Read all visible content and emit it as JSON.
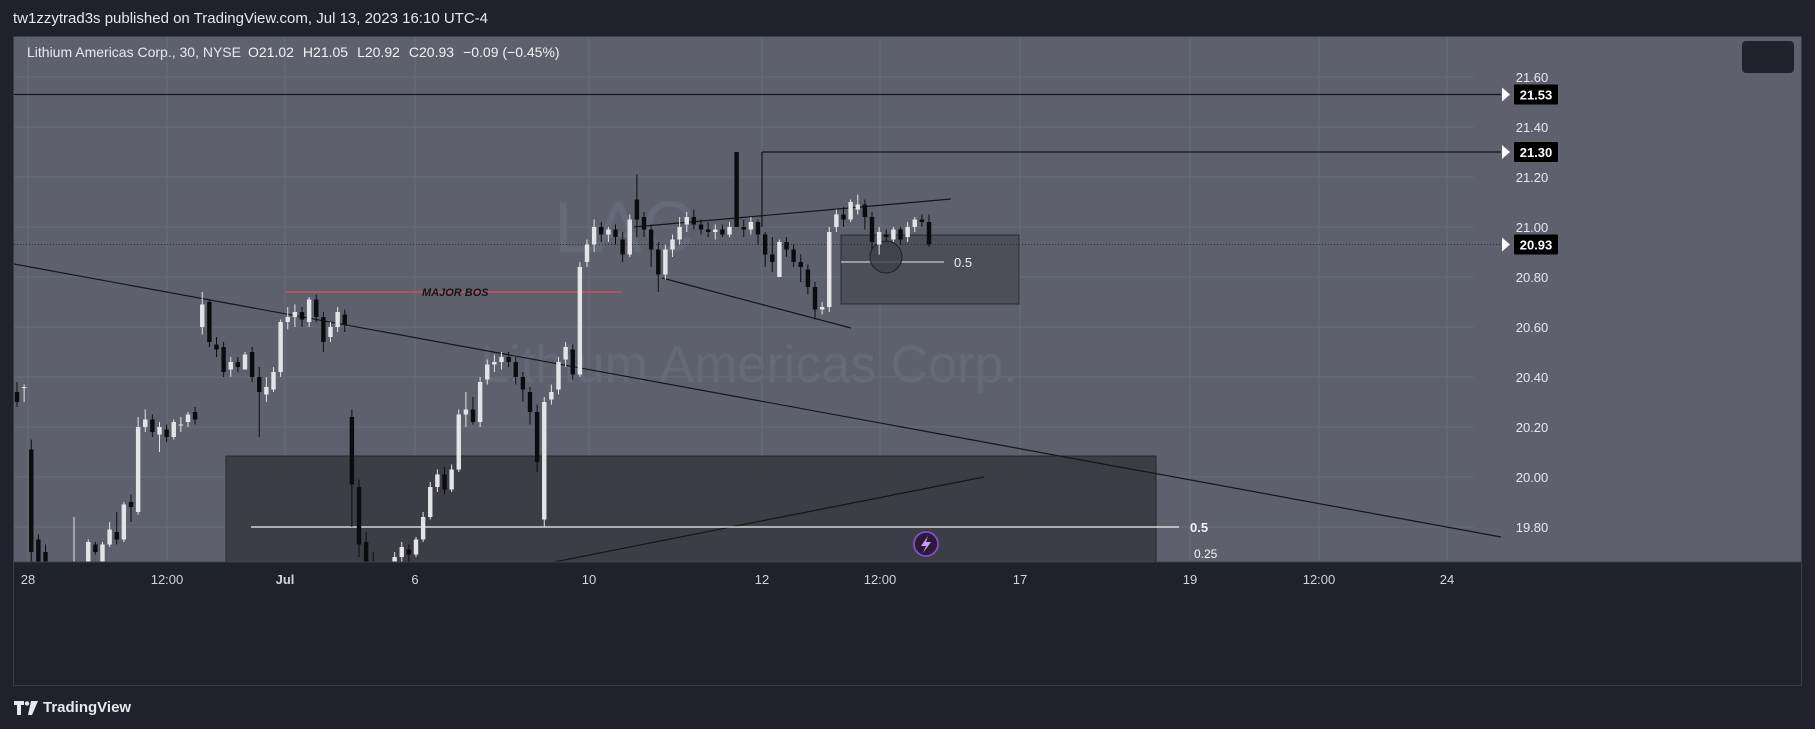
{
  "header": {
    "publish_line": "tw1zzytrad3s published on TradingView.com, Jul 13, 2023 16:10 UTC-4"
  },
  "legend": {
    "symbol": "Lithium Americas Corp., 30, NYSE",
    "open": "O21.02",
    "high": "H21.05",
    "low": "L20.92",
    "close": "C20.93",
    "change": "−0.09 (−0.45%)"
  },
  "watermark": {
    "ticker": "LAC",
    "name": "Lithium Americas Corp."
  },
  "footer": {
    "brand": "TradingView"
  },
  "colors": {
    "background": "#5e606e",
    "up_candle": "#e4e4e8",
    "down_candle": "#0c0c10",
    "bos_line": "#ff4d4d",
    "zone_fill": "#3a3b42",
    "price_tag_bg": "#000000"
  },
  "chart_data": {
    "type": "candlestick",
    "symbol": "LAC",
    "timeframe": "30",
    "exchange": "NYSE",
    "ylim": [
      19.66,
      21.76
    ],
    "yticks": [
      "21.60",
      "21.40",
      "21.20",
      "21.00",
      "20.80",
      "20.60",
      "20.40",
      "20.20",
      "20.00",
      "19.80"
    ],
    "xticks": [
      "28",
      "12:00",
      "Jul",
      "6",
      "10",
      "12",
      "12:00",
      "17",
      "19",
      "12:00",
      "24"
    ],
    "price_labels": [
      {
        "value": "21.53"
      },
      {
        "value": "21.30"
      },
      {
        "value": "20.93"
      }
    ],
    "annotations": {
      "bos_label": "MAJOR BOS",
      "fib_small": "0.5",
      "fib_large": "0.5",
      "fib_cut": "0.25"
    },
    "candles": [
      {
        "o": 20.34,
        "h": 20.38,
        "l": 20.28,
        "c": 20.3
      },
      {
        "o": 20.36,
        "h": 20.37,
        "l": 20.3,
        "c": 20.36
      },
      {
        "o": 20.11,
        "h": 20.15,
        "l": 19.6,
        "c": 19.7
      },
      {
        "o": 19.75,
        "h": 19.77,
        "l": 19.56,
        "c": 19.61
      },
      {
        "o": 19.7,
        "h": 19.73,
        "l": 19.6,
        "c": 19.66
      },
      {
        "o": 19.6,
        "h": 19.65,
        "l": 19.5,
        "c": 19.58
      },
      {
        "o": 19.58,
        "h": 19.62,
        "l": 19.55,
        "c": 19.6
      },
      {
        "o": 19.6,
        "h": 19.66,
        "l": 19.58,
        "c": 19.62
      },
      {
        "o": 19.63,
        "h": 19.84,
        "l": 19.6,
        "c": 19.66
      },
      {
        "o": 19.62,
        "h": 19.65,
        "l": 19.6,
        "c": 19.64
      },
      {
        "o": 19.65,
        "h": 19.75,
        "l": 19.63,
        "c": 19.74
      },
      {
        "o": 19.73,
        "h": 19.74,
        "l": 19.69,
        "c": 19.7
      },
      {
        "o": 19.66,
        "h": 19.74,
        "l": 19.66,
        "c": 19.73
      },
      {
        "o": 19.73,
        "h": 19.82,
        "l": 19.72,
        "c": 19.79
      },
      {
        "o": 19.78,
        "h": 19.86,
        "l": 19.73,
        "c": 19.75
      },
      {
        "o": 19.75,
        "h": 19.9,
        "l": 19.74,
        "c": 19.89
      },
      {
        "o": 19.9,
        "h": 19.93,
        "l": 19.82,
        "c": 19.88
      },
      {
        "o": 19.86,
        "h": 20.24,
        "l": 19.85,
        "c": 20.2
      },
      {
        "o": 20.2,
        "h": 20.27,
        "l": 20.18,
        "c": 20.23
      },
      {
        "o": 20.23,
        "h": 20.25,
        "l": 20.16,
        "c": 20.18
      },
      {
        "o": 20.17,
        "h": 20.22,
        "l": 20.1,
        "c": 20.2
      },
      {
        "o": 20.19,
        "h": 20.21,
        "l": 20.14,
        "c": 20.16
      },
      {
        "o": 20.16,
        "h": 20.23,
        "l": 20.15,
        "c": 20.22
      },
      {
        "o": 20.21,
        "h": 20.24,
        "l": 20.18,
        "c": 20.21
      },
      {
        "o": 20.22,
        "h": 20.26,
        "l": 20.2,
        "c": 20.25
      },
      {
        "o": 20.26,
        "h": 20.28,
        "l": 20.21,
        "c": 20.23
      },
      {
        "o": 20.6,
        "h": 20.74,
        "l": 20.57,
        "c": 20.69
      },
      {
        "o": 20.7,
        "h": 20.71,
        "l": 20.52,
        "c": 20.54
      },
      {
        "o": 20.53,
        "h": 20.56,
        "l": 20.48,
        "c": 20.51
      },
      {
        "o": 20.52,
        "h": 20.54,
        "l": 20.4,
        "c": 20.42
      },
      {
        "o": 20.43,
        "h": 20.48,
        "l": 20.4,
        "c": 20.46
      },
      {
        "o": 20.46,
        "h": 20.48,
        "l": 20.42,
        "c": 20.44
      },
      {
        "o": 20.43,
        "h": 20.5,
        "l": 20.43,
        "c": 20.49
      },
      {
        "o": 20.5,
        "h": 20.52,
        "l": 20.38,
        "c": 20.4
      },
      {
        "o": 20.4,
        "h": 20.44,
        "l": 20.16,
        "c": 20.34
      },
      {
        "o": 20.33,
        "h": 20.4,
        "l": 20.3,
        "c": 20.36
      },
      {
        "o": 20.35,
        "h": 20.44,
        "l": 20.34,
        "c": 20.42
      },
      {
        "o": 20.42,
        "h": 20.63,
        "l": 20.4,
        "c": 20.62
      },
      {
        "o": 20.62,
        "h": 20.68,
        "l": 20.59,
        "c": 20.64
      },
      {
        "o": 20.64,
        "h": 20.69,
        "l": 20.6,
        "c": 20.66
      },
      {
        "o": 20.66,
        "h": 20.68,
        "l": 20.6,
        "c": 20.63
      },
      {
        "o": 20.62,
        "h": 20.72,
        "l": 20.6,
        "c": 20.71
      },
      {
        "o": 20.71,
        "h": 20.73,
        "l": 20.62,
        "c": 20.64
      },
      {
        "o": 20.64,
        "h": 20.66,
        "l": 20.5,
        "c": 20.54
      },
      {
        "o": 20.56,
        "h": 20.62,
        "l": 20.54,
        "c": 20.6
      },
      {
        "o": 20.6,
        "h": 20.68,
        "l": 20.58,
        "c": 20.66
      },
      {
        "o": 20.65,
        "h": 20.67,
        "l": 20.58,
        "c": 20.61
      },
      {
        "o": 20.24,
        "h": 20.27,
        "l": 19.8,
        "c": 19.97
      },
      {
        "o": 19.96,
        "h": 19.99,
        "l": 19.68,
        "c": 19.73
      },
      {
        "o": 19.74,
        "h": 19.78,
        "l": 19.61,
        "c": 19.65
      },
      {
        "o": 19.65,
        "h": 19.7,
        "l": 19.56,
        "c": 19.62
      },
      {
        "o": 19.62,
        "h": 19.64,
        "l": 19.5,
        "c": 19.57
      },
      {
        "o": 19.57,
        "h": 19.62,
        "l": 19.5,
        "c": 19.6
      },
      {
        "o": 19.6,
        "h": 19.7,
        "l": 19.59,
        "c": 19.68
      },
      {
        "o": 19.68,
        "h": 19.74,
        "l": 19.65,
        "c": 19.72
      },
      {
        "o": 19.71,
        "h": 19.73,
        "l": 19.66,
        "c": 19.69
      },
      {
        "o": 19.69,
        "h": 19.76,
        "l": 19.68,
        "c": 19.75
      },
      {
        "o": 19.75,
        "h": 19.86,
        "l": 19.74,
        "c": 19.84
      },
      {
        "o": 19.84,
        "h": 19.98,
        "l": 19.83,
        "c": 19.96
      },
      {
        "o": 19.96,
        "h": 20.03,
        "l": 19.94,
        "c": 20.01
      },
      {
        "o": 20.01,
        "h": 20.04,
        "l": 19.93,
        "c": 19.95
      },
      {
        "o": 19.95,
        "h": 20.05,
        "l": 19.94,
        "c": 20.03
      },
      {
        "o": 20.03,
        "h": 20.27,
        "l": 20.02,
        "c": 20.25
      },
      {
        "o": 20.25,
        "h": 20.34,
        "l": 20.2,
        "c": 20.27
      },
      {
        "o": 20.27,
        "h": 20.32,
        "l": 20.21,
        "c": 20.22
      },
      {
        "o": 20.22,
        "h": 20.4,
        "l": 20.2,
        "c": 20.38
      },
      {
        "o": 20.39,
        "h": 20.47,
        "l": 20.37,
        "c": 20.45
      },
      {
        "o": 20.45,
        "h": 20.49,
        "l": 20.42,
        "c": 20.46
      },
      {
        "o": 20.46,
        "h": 20.5,
        "l": 20.43,
        "c": 20.48
      },
      {
        "o": 20.48,
        "h": 20.5,
        "l": 20.44,
        "c": 20.46
      },
      {
        "o": 20.46,
        "h": 20.48,
        "l": 20.37,
        "c": 20.4
      },
      {
        "o": 20.4,
        "h": 20.42,
        "l": 20.3,
        "c": 20.35
      },
      {
        "o": 20.34,
        "h": 20.36,
        "l": 20.21,
        "c": 20.26
      },
      {
        "o": 20.26,
        "h": 20.29,
        "l": 20.02,
        "c": 20.06
      },
      {
        "o": 19.83,
        "h": 20.32,
        "l": 19.8,
        "c": 20.3
      },
      {
        "o": 20.31,
        "h": 20.37,
        "l": 20.29,
        "c": 20.34
      },
      {
        "o": 20.35,
        "h": 20.48,
        "l": 20.33,
        "c": 20.46
      },
      {
        "o": 20.47,
        "h": 20.54,
        "l": 20.44,
        "c": 20.52
      },
      {
        "o": 20.51,
        "h": 20.53,
        "l": 20.39,
        "c": 20.41
      },
      {
        "o": 20.41,
        "h": 20.86,
        "l": 20.4,
        "c": 20.84
      },
      {
        "o": 20.86,
        "h": 20.95,
        "l": 20.84,
        "c": 20.93
      },
      {
        "o": 20.93,
        "h": 21.03,
        "l": 20.9,
        "c": 21.0
      },
      {
        "o": 21.0,
        "h": 21.02,
        "l": 20.94,
        "c": 20.97
      },
      {
        "o": 20.97,
        "h": 21.0,
        "l": 20.94,
        "c": 20.99
      },
      {
        "o": 20.99,
        "h": 21.01,
        "l": 20.93,
        "c": 20.96
      },
      {
        "o": 20.95,
        "h": 20.98,
        "l": 20.86,
        "c": 20.89
      },
      {
        "o": 20.89,
        "h": 21.05,
        "l": 20.88,
        "c": 21.03
      },
      {
        "o": 21.11,
        "h": 21.21,
        "l": 20.96,
        "c": 21.03
      },
      {
        "o": 21.04,
        "h": 21.06,
        "l": 20.96,
        "c": 20.99
      },
      {
        "o": 20.99,
        "h": 21.01,
        "l": 20.84,
        "c": 20.91
      },
      {
        "o": 20.91,
        "h": 20.94,
        "l": 20.74,
        "c": 20.81
      },
      {
        "o": 20.81,
        "h": 20.93,
        "l": 20.79,
        "c": 20.91
      },
      {
        "o": 20.91,
        "h": 20.97,
        "l": 20.88,
        "c": 20.95
      },
      {
        "o": 20.95,
        "h": 21.04,
        "l": 20.93,
        "c": 21.0
      },
      {
        "o": 21.01,
        "h": 21.06,
        "l": 20.98,
        "c": 21.04
      },
      {
        "o": 21.04,
        "h": 21.07,
        "l": 20.99,
        "c": 21.01
      },
      {
        "o": 21.01,
        "h": 21.03,
        "l": 20.97,
        "c": 20.99
      },
      {
        "o": 20.99,
        "h": 21.02,
        "l": 20.96,
        "c": 20.98
      },
      {
        "o": 20.98,
        "h": 21.01,
        "l": 20.95,
        "c": 20.99
      },
      {
        "o": 20.99,
        "h": 21.01,
        "l": 20.96,
        "c": 20.97
      },
      {
        "o": 20.97,
        "h": 21.02,
        "l": 20.96,
        "c": 21.0
      },
      {
        "o": 21.3,
        "h": 21.3,
        "l": 21.0,
        "c": 21.0
      },
      {
        "o": 21.0,
        "h": 21.03,
        "l": 20.96,
        "c": 20.99
      },
      {
        "o": 20.99,
        "h": 21.04,
        "l": 20.97,
        "c": 21.02
      },
      {
        "o": 21.02,
        "h": 21.03,
        "l": 20.93,
        "c": 20.97
      },
      {
        "o": 20.97,
        "h": 20.98,
        "l": 20.84,
        "c": 20.89
      },
      {
        "o": 20.89,
        "h": 20.96,
        "l": 20.82,
        "c": 20.86
      },
      {
        "o": 20.8,
        "h": 20.95,
        "l": 20.8,
        "c": 20.94
      },
      {
        "o": 20.94,
        "h": 20.96,
        "l": 20.88,
        "c": 20.91
      },
      {
        "o": 20.91,
        "h": 20.93,
        "l": 20.84,
        "c": 20.86
      },
      {
        "o": 20.86,
        "h": 20.89,
        "l": 20.78,
        "c": 20.84
      },
      {
        "o": 20.83,
        "h": 20.85,
        "l": 20.73,
        "c": 20.76
      },
      {
        "o": 20.76,
        "h": 20.78,
        "l": 20.63,
        "c": 20.67
      },
      {
        "o": 20.67,
        "h": 20.7,
        "l": 20.65,
        "c": 20.68
      },
      {
        "o": 20.68,
        "h": 21.0,
        "l": 20.66,
        "c": 20.98
      },
      {
        "o": 21.0,
        "h": 21.07,
        "l": 20.98,
        "c": 21.05
      },
      {
        "o": 21.05,
        "h": 21.08,
        "l": 21.0,
        "c": 21.03
      },
      {
        "o": 21.03,
        "h": 21.11,
        "l": 21.02,
        "c": 21.1
      },
      {
        "o": 21.07,
        "h": 21.13,
        "l": 21.05,
        "c": 21.09
      },
      {
        "o": 21.09,
        "h": 21.11,
        "l": 20.99,
        "c": 21.04
      },
      {
        "o": 21.04,
        "h": 21.06,
        "l": 20.91,
        "c": 20.94
      },
      {
        "o": 20.93,
        "h": 21.0,
        "l": 20.89,
        "c": 20.98
      },
      {
        "o": 20.97,
        "h": 20.99,
        "l": 20.94,
        "c": 20.96
      },
      {
        "o": 20.95,
        "h": 21.0,
        "l": 20.94,
        "c": 20.99
      },
      {
        "o": 20.99,
        "h": 21.0,
        "l": 20.93,
        "c": 20.95
      },
      {
        "o": 20.96,
        "h": 21.02,
        "l": 20.94,
        "c": 21.0
      },
      {
        "o": 21.0,
        "h": 21.04,
        "l": 20.98,
        "c": 21.03
      },
      {
        "o": 21.03,
        "h": 21.05,
        "l": 21.0,
        "c": 21.02
      },
      {
        "o": 21.02,
        "h": 21.05,
        "l": 20.92,
        "c": 20.93
      }
    ]
  }
}
